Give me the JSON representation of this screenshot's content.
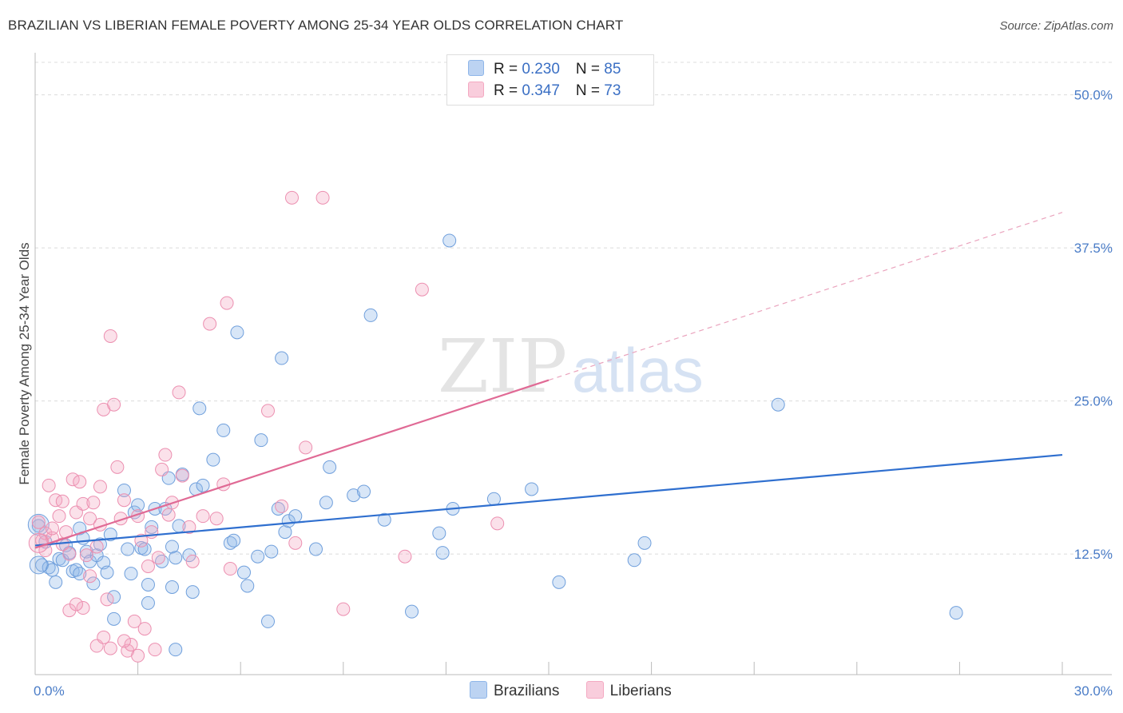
{
  "title": "BRAZILIAN VS LIBERIAN FEMALE POVERTY AMONG 25-34 YEAR OLDS CORRELATION CHART",
  "source": "Source: ZipAtlas.com",
  "watermark": {
    "zip": "ZIP",
    "atlas": "atlas"
  },
  "legend": {
    "rows": [
      {
        "r_label": "R = ",
        "r_value": "0.230",
        "n_label": "N = ",
        "n_value": "85"
      },
      {
        "r_label": "R = ",
        "r_value": "0.347",
        "n_label": "N = ",
        "n_value": "73"
      }
    ]
  },
  "chart_data": {
    "type": "scatter",
    "title": "BRAZILIAN VS LIBERIAN FEMALE POVERTY AMONG 25-34 YEAR OLDS CORRELATION CHART",
    "xlabel": "",
    "ylabel": "Female Poverty Among 25-34 Year Olds",
    "xlim": [
      0,
      30
    ],
    "ylim": [
      0,
      52
    ],
    "x_tick_labels": [
      "0.0%",
      "30.0%"
    ],
    "y_ticks": [
      12.5,
      25.0,
      37.5,
      50.0
    ],
    "y_tick_labels": [
      "12.5%",
      "25.0%",
      "37.5%",
      "50.0%"
    ],
    "grid": true,
    "legend_position": "top-center",
    "colors": {
      "Brazilians": "#8fb6e9",
      "Liberians": "#f4a9c2",
      "blue_line": "#2f6fcf",
      "pink_line": "#e06a95"
    },
    "series": [
      {
        "name": "Brazilians",
        "r": 0.23,
        "n": 85,
        "trend": {
          "x": [
            0,
            30
          ],
          "y": [
            13.2,
            20.6
          ]
        },
        "points": [
          [
            0.1,
            14.8
          ],
          [
            0.2,
            11.6
          ],
          [
            0.3,
            13.5
          ],
          [
            0.4,
            11.4
          ],
          [
            0.5,
            11.2
          ],
          [
            0.6,
            10.2
          ],
          [
            0.7,
            12.1
          ],
          [
            0.8,
            12.0
          ],
          [
            0.9,
            13.2
          ],
          [
            1.0,
            12.6
          ],
          [
            1.1,
            11.1
          ],
          [
            1.2,
            11.2
          ],
          [
            1.3,
            14.6
          ],
          [
            1.4,
            13.8
          ],
          [
            1.5,
            12.7
          ],
          [
            1.6,
            11.9
          ],
          [
            1.7,
            10.1
          ],
          [
            1.8,
            12.4
          ],
          [
            1.9,
            13.3
          ],
          [
            2.0,
            11.8
          ],
          [
            2.1,
            11.0
          ],
          [
            2.2,
            14.1
          ],
          [
            2.3,
            9.0
          ],
          [
            2.6,
            17.7
          ],
          [
            2.7,
            12.9
          ],
          [
            2.8,
            10.9
          ],
          [
            2.9,
            15.9
          ],
          [
            3.0,
            16.5
          ],
          [
            3.1,
            13.0
          ],
          [
            3.2,
            12.9
          ],
          [
            3.3,
            10.0
          ],
          [
            3.4,
            14.7
          ],
          [
            3.5,
            16.2
          ],
          [
            3.7,
            11.9
          ],
          [
            3.8,
            16.2
          ],
          [
            3.9,
            18.7
          ],
          [
            4.0,
            13.1
          ],
          [
            4.1,
            12.2
          ],
          [
            4.2,
            14.8
          ],
          [
            4.3,
            19.0
          ],
          [
            4.5,
            12.4
          ],
          [
            4.6,
            9.4
          ],
          [
            4.7,
            17.8
          ],
          [
            4.8,
            24.4
          ],
          [
            4.9,
            18.1
          ],
          [
            5.2,
            20.2
          ],
          [
            5.5,
            22.6
          ],
          [
            5.7,
            13.4
          ],
          [
            5.8,
            13.6
          ],
          [
            5.9,
            30.6
          ],
          [
            6.1,
            11.0
          ],
          [
            6.2,
            9.9
          ],
          [
            6.5,
            12.3
          ],
          [
            6.6,
            21.8
          ],
          [
            6.8,
            7.0
          ],
          [
            6.9,
            12.7
          ],
          [
            7.1,
            16.2
          ],
          [
            7.2,
            28.5
          ],
          [
            7.3,
            14.3
          ],
          [
            7.4,
            15.2
          ],
          [
            7.6,
            15.6
          ],
          [
            8.2,
            12.9
          ],
          [
            8.5,
            16.7
          ],
          [
            8.6,
            19.6
          ],
          [
            9.3,
            17.3
          ],
          [
            9.6,
            17.6
          ],
          [
            9.8,
            32.0
          ],
          [
            10.2,
            15.3
          ],
          [
            11.0,
            7.8
          ],
          [
            11.8,
            14.2
          ],
          [
            11.9,
            12.6
          ],
          [
            12.1,
            38.1
          ],
          [
            12.2,
            16.2
          ],
          [
            13.4,
            17.0
          ],
          [
            14.5,
            17.8
          ],
          [
            15.3,
            10.2
          ],
          [
            17.5,
            12.0
          ],
          [
            17.8,
            13.4
          ],
          [
            21.7,
            24.7
          ],
          [
            26.9,
            7.7
          ],
          [
            4.1,
            4.7
          ],
          [
            2.3,
            7.2
          ],
          [
            3.3,
            8.5
          ],
          [
            4.0,
            9.8
          ],
          [
            1.3,
            10.9
          ]
        ]
      },
      {
        "name": "Liberians",
        "r": 0.347,
        "n": 73,
        "trend": {
          "x": [
            0,
            15
          ],
          "y": [
            13.0,
            26.7
          ]
        },
        "trend_dashed": {
          "x": [
            15,
            30
          ],
          "y": [
            26.7,
            40.4
          ]
        },
        "points": [
          [
            0.1,
            15.1
          ],
          [
            0.2,
            13.6
          ],
          [
            0.3,
            14.2
          ],
          [
            0.4,
            18.1
          ],
          [
            0.5,
            13.8
          ],
          [
            0.6,
            16.9
          ],
          [
            0.7,
            15.6
          ],
          [
            0.8,
            16.8
          ],
          [
            0.9,
            14.3
          ],
          [
            1.0,
            12.5
          ],
          [
            1.1,
            18.6
          ],
          [
            1.2,
            15.9
          ],
          [
            1.3,
            18.4
          ],
          [
            1.4,
            16.6
          ],
          [
            1.5,
            12.4
          ],
          [
            1.6,
            15.4
          ],
          [
            1.7,
            16.7
          ],
          [
            1.8,
            13.1
          ],
          [
            1.9,
            18.0
          ],
          [
            2.0,
            24.3
          ],
          [
            2.1,
            8.8
          ],
          [
            2.2,
            30.3
          ],
          [
            2.3,
            24.7
          ],
          [
            2.4,
            19.6
          ],
          [
            2.5,
            15.4
          ],
          [
            2.6,
            16.9
          ],
          [
            2.7,
            4.6
          ],
          [
            2.8,
            5.1
          ],
          [
            2.9,
            7.0
          ],
          [
            3.0,
            15.6
          ],
          [
            3.1,
            13.6
          ],
          [
            3.2,
            6.4
          ],
          [
            3.3,
            11.5
          ],
          [
            3.4,
            14.3
          ],
          [
            3.6,
            12.2
          ],
          [
            3.7,
            19.4
          ],
          [
            3.8,
            20.6
          ],
          [
            3.9,
            15.7
          ],
          [
            4.0,
            16.7
          ],
          [
            4.2,
            25.7
          ],
          [
            4.3,
            18.9
          ],
          [
            4.5,
            14.7
          ],
          [
            4.6,
            11.9
          ],
          [
            4.9,
            15.6
          ],
          [
            5.1,
            31.3
          ],
          [
            5.3,
            15.4
          ],
          [
            5.5,
            18.2
          ],
          [
            5.6,
            33.0
          ],
          [
            5.7,
            11.3
          ],
          [
            6.8,
            24.2
          ],
          [
            7.2,
            16.4
          ],
          [
            7.5,
            41.6
          ],
          [
            7.6,
            13.4
          ],
          [
            7.9,
            21.2
          ],
          [
            8.4,
            41.6
          ],
          [
            9.0,
            8.0
          ],
          [
            10.8,
            12.3
          ],
          [
            11.3,
            34.1
          ],
          [
            13.5,
            15.0
          ],
          [
            1.0,
            7.9
          ],
          [
            1.4,
            8.1
          ],
          [
            1.8,
            5.0
          ],
          [
            2.0,
            5.7
          ],
          [
            2.2,
            4.8
          ],
          [
            1.2,
            8.4
          ],
          [
            0.8,
            13.3
          ],
          [
            0.5,
            14.6
          ],
          [
            2.6,
            5.4
          ],
          [
            3.5,
            4.7
          ],
          [
            3.0,
            4.2
          ],
          [
            1.6,
            10.7
          ],
          [
            0.3,
            12.8
          ],
          [
            1.9,
            14.9
          ]
        ]
      }
    ]
  }
}
